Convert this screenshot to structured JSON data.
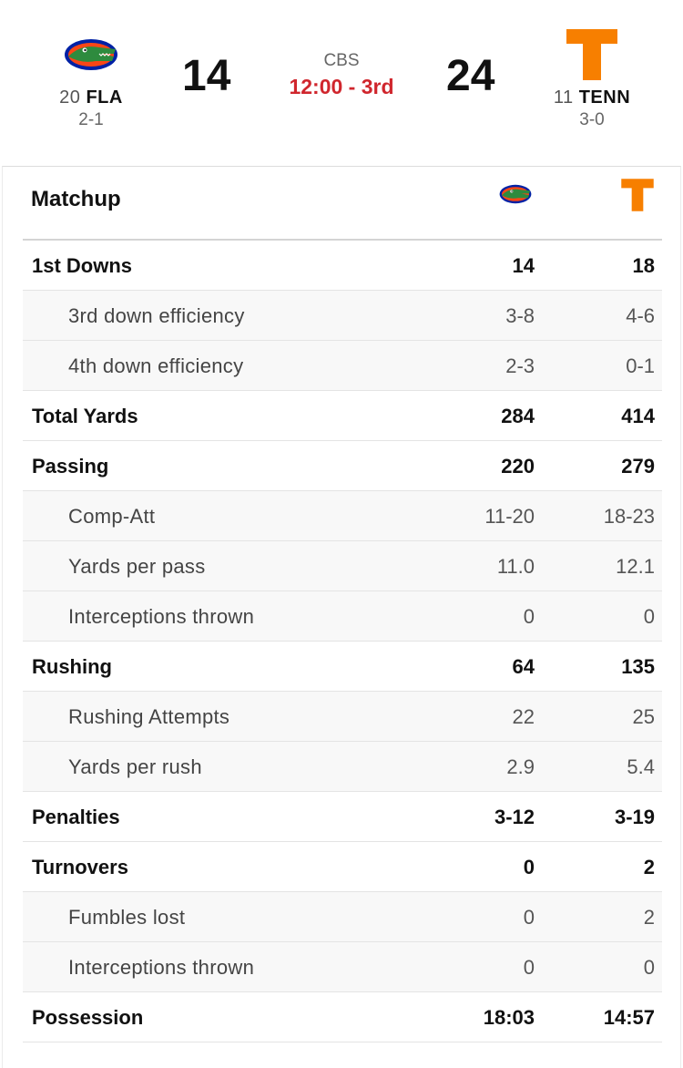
{
  "game": {
    "network": "CBS",
    "clock": "12:00 - 3rd",
    "away": {
      "rank": "20",
      "abbr": "FLA",
      "record": "2-1",
      "score": "14",
      "logo": "gator-logo-icon",
      "color": "#0021A5"
    },
    "home": {
      "rank": "11",
      "abbr": "TENN",
      "record": "3-0",
      "score": "24",
      "logo": "power-t-logo-icon",
      "color": "#F77F00"
    }
  },
  "matchup": {
    "title": "Matchup",
    "rows": [
      {
        "label": "1st Downs",
        "away": "14",
        "home": "18",
        "kind": "main"
      },
      {
        "label": "3rd down efficiency",
        "away": "3-8",
        "home": "4-6",
        "kind": "sub"
      },
      {
        "label": "4th down efficiency",
        "away": "2-3",
        "home": "0-1",
        "kind": "sub"
      },
      {
        "label": "Total Yards",
        "away": "284",
        "home": "414",
        "kind": "main"
      },
      {
        "label": "Passing",
        "away": "220",
        "home": "279",
        "kind": "main"
      },
      {
        "label": "Comp-Att",
        "away": "11-20",
        "home": "18-23",
        "kind": "sub"
      },
      {
        "label": "Yards per pass",
        "away": "11.0",
        "home": "12.1",
        "kind": "sub"
      },
      {
        "label": "Interceptions thrown",
        "away": "0",
        "home": "0",
        "kind": "sub"
      },
      {
        "label": "Rushing",
        "away": "64",
        "home": "135",
        "kind": "main"
      },
      {
        "label": "Rushing Attempts",
        "away": "22",
        "home": "25",
        "kind": "sub"
      },
      {
        "label": "Yards per rush",
        "away": "2.9",
        "home": "5.4",
        "kind": "sub"
      },
      {
        "label": "Penalties",
        "away": "3-12",
        "home": "3-19",
        "kind": "main"
      },
      {
        "label": "Turnovers",
        "away": "0",
        "home": "2",
        "kind": "main"
      },
      {
        "label": "Fumbles lost",
        "away": "0",
        "home": "2",
        "kind": "sub"
      },
      {
        "label": "Interceptions thrown",
        "away": "0",
        "home": "0",
        "kind": "sub"
      },
      {
        "label": "Possession",
        "away": "18:03",
        "home": "14:57",
        "kind": "main"
      }
    ]
  }
}
